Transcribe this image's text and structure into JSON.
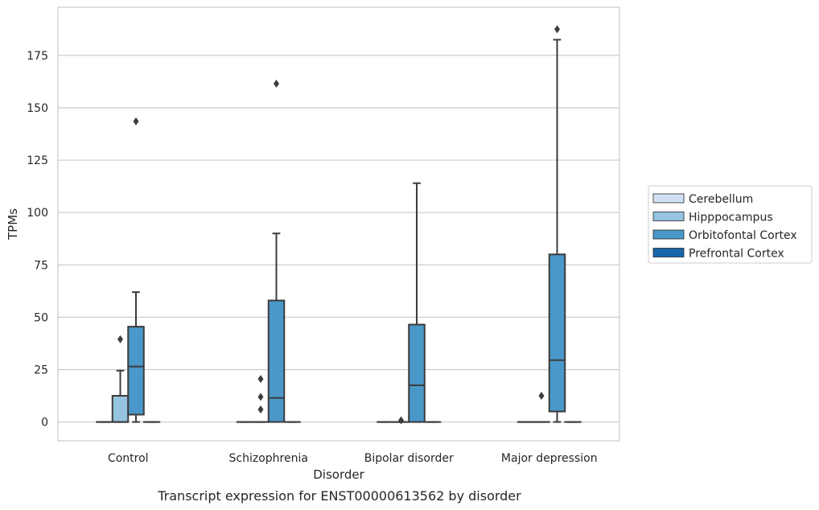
{
  "chart_data": {
    "type": "box",
    "caption": "Transcript expression for ENST00000613562 by disorder",
    "xlabel": "Disorder",
    "ylabel": "TPMs",
    "ylim": [
      -9,
      198
    ],
    "yticks": [
      0,
      25,
      50,
      75,
      100,
      125,
      150,
      175
    ],
    "grid": "horizontal",
    "legend_position": "right",
    "categories": [
      "Control",
      "Schizophrenia",
      "Bipolar disorder",
      "Major depression"
    ],
    "series": [
      {
        "name": "Cerebellum",
        "color": "#d0e1f2",
        "boxes": [
          {
            "q1": 0,
            "median": 0,
            "q3": 0,
            "whislo": 0,
            "whishi": 0,
            "fliers": []
          },
          {
            "q1": 0,
            "median": 0,
            "q3": 0,
            "whislo": 0,
            "whishi": 0,
            "fliers": []
          },
          {
            "q1": 0,
            "median": 0,
            "q3": 0,
            "whislo": 0,
            "whishi": 0,
            "fliers": []
          },
          {
            "q1": 0,
            "median": 0,
            "q3": 0,
            "whislo": 0,
            "whishi": 0,
            "fliers": []
          }
        ]
      },
      {
        "name": "Hipppocampus",
        "color": "#94c4df",
        "boxes": [
          {
            "q1": 0,
            "median": 0,
            "q3": 12.5,
            "whislo": 0,
            "whishi": 24.5,
            "fliers": [
              39.5
            ]
          },
          {
            "q1": 0,
            "median": 0,
            "q3": 0,
            "whislo": 0,
            "whishi": 0,
            "fliers": [
              6,
              12,
              20.5
            ]
          },
          {
            "q1": 0,
            "median": 0,
            "q3": 0,
            "whislo": 0,
            "whishi": 0,
            "fliers": [
              0.8
            ]
          },
          {
            "q1": 0,
            "median": 0,
            "q3": 0,
            "whislo": 0,
            "whishi": 0,
            "fliers": [
              12.5
            ]
          }
        ]
      },
      {
        "name": "Orbitofontal Cortex",
        "color": "#4a98c9",
        "boxes": [
          {
            "q1": 3.5,
            "median": 26.5,
            "q3": 45.5,
            "whislo": 0,
            "whishi": 62,
            "fliers": [
              143.5
            ]
          },
          {
            "q1": 0,
            "median": 11.5,
            "q3": 58,
            "whislo": 0,
            "whishi": 90,
            "fliers": [
              161.5
            ]
          },
          {
            "q1": 0,
            "median": 17.5,
            "q3": 46.5,
            "whislo": 0,
            "whishi": 114,
            "fliers": []
          },
          {
            "q1": 5,
            "median": 29.5,
            "q3": 80,
            "whislo": 0,
            "whishi": 182.5,
            "fliers": [
              187.5
            ]
          }
        ]
      },
      {
        "name": "Prefrontal Cortex",
        "color": "#1764ab",
        "boxes": [
          {
            "q1": 0,
            "median": 0,
            "q3": 0,
            "whislo": 0,
            "whishi": 0,
            "fliers": []
          },
          {
            "q1": 0,
            "median": 0,
            "q3": 0,
            "whislo": 0,
            "whishi": 0,
            "fliers": []
          },
          {
            "q1": 0,
            "median": 0,
            "q3": 0,
            "whislo": 0,
            "whishi": 0,
            "fliers": []
          },
          {
            "q1": 0,
            "median": 0,
            "q3": 0,
            "whislo": 0,
            "whishi": 0,
            "fliers": []
          }
        ]
      }
    ]
  }
}
